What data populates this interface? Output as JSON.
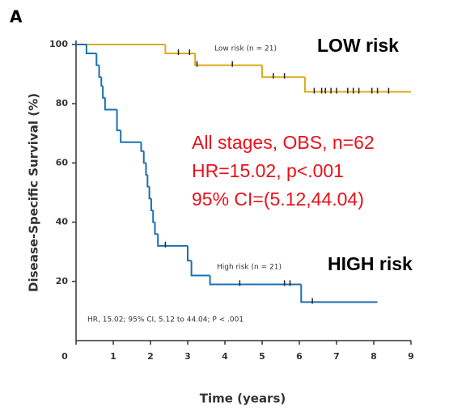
{
  "chart_data": {
    "type": "step",
    "panel": "A",
    "ylabel": "Disease-Specific Survival (%)",
    "xlabel": "Time (years)",
    "xlim": [
      0,
      9
    ],
    "ylim": [
      0,
      100
    ],
    "xticks": [
      0,
      1,
      2,
      3,
      4,
      5,
      6,
      7,
      8,
      9
    ],
    "yticks": [
      20,
      40,
      60,
      80,
      100
    ],
    "series": [
      {
        "name": "Low risk (n = 21)",
        "color": "#d9ac1c",
        "x": [
          0,
          2.4,
          3.2,
          5.0,
          6.15,
          9.0
        ],
        "values": [
          100,
          97,
          93,
          89,
          84,
          84
        ],
        "censored": [
          2.75,
          3.05,
          3.25,
          4.2,
          5.3,
          5.6,
          6.4,
          6.6,
          6.7,
          6.85,
          7.0,
          7.3,
          7.45,
          7.6,
          7.95,
          8.1,
          8.4
        ]
      },
      {
        "name": "High risk (n = 21)",
        "color": "#1b70b0",
        "x": [
          0,
          0.28,
          0.55,
          0.62,
          0.68,
          0.72,
          0.78,
          1.1,
          1.2,
          1.75,
          1.82,
          1.88,
          1.92,
          1.97,
          2.02,
          2.07,
          2.12,
          2.2,
          3.0,
          3.1,
          3.6,
          6.05,
          8.1
        ],
        "values": [
          100,
          97,
          93,
          89,
          86,
          82,
          78,
          71,
          67,
          64,
          60,
          56,
          52,
          48,
          44,
          40,
          36,
          32,
          27,
          22,
          19,
          13,
          13
        ],
        "censored": [
          2.4,
          4.4,
          5.6,
          5.75,
          6.35
        ]
      }
    ],
    "note": "HR, 15.02; 95% CI, 5.12 to 44.04; P < .001",
    "annotations": [
      "LOW risk",
      "HIGH risk",
      "All stages, OBS, n=62",
      "HR=15.02, p<.001",
      "95% CI=(5.12,44.04)"
    ]
  }
}
